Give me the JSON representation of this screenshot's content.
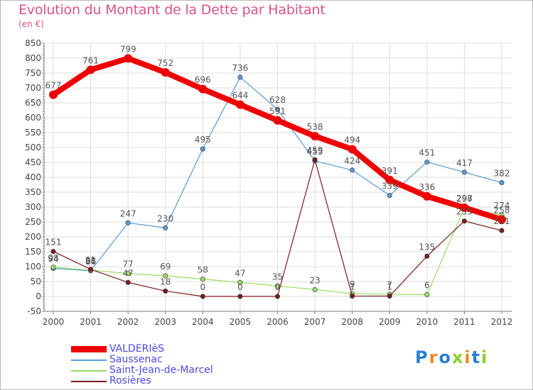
{
  "title": "Evolution du Montant de la Dette par Habitant",
  "subtitle": "(en €)",
  "logo_text": "Proxiti",
  "colors": {
    "title": "#d9528a",
    "grid": "#dcdcdc",
    "axis": "#777777",
    "legend_text": "#4a4ae6"
  },
  "chart_data": {
    "type": "line",
    "title": "Evolution du Montant de la Dette par Habitant",
    "subtitle": "(en €)",
    "xlabel": "",
    "ylabel": "",
    "x": [
      "2000",
      "2001",
      "2002",
      "2003",
      "2004",
      "2005",
      "2006",
      "2007",
      "2008",
      "2009",
      "2010",
      "2011",
      "2012"
    ],
    "ylim": [
      -50,
      850
    ],
    "yticks": [
      -50,
      0,
      50,
      100,
      150,
      200,
      250,
      300,
      350,
      400,
      450,
      500,
      550,
      600,
      650,
      700,
      750,
      800,
      850
    ],
    "grid": true,
    "legend_position": "bottom-left",
    "series": [
      {
        "name": "VALDERIèS",
        "color": "#ee0000",
        "width": 8,
        "values": [
          677,
          761,
          799,
          752,
          696,
          644,
          591,
          538,
          494,
          391,
          336,
          298,
          258
        ],
        "labels": [
          "677",
          "761",
          "799",
          "752",
          "696",
          "644",
          "591",
          "538",
          "494",
          "391",
          "336",
          "298",
          "258"
        ]
      },
      {
        "name": "Saussenac",
        "color": "#5b9bd5",
        "width": 1.2,
        "values": [
          94,
          86,
          247,
          230,
          495,
          736,
          628,
          455,
          424,
          339,
          451,
          417,
          382
        ],
        "labels": [
          "94",
          "86",
          "247",
          "230",
          "495",
          "736",
          "628",
          "455",
          "424",
          "339",
          "451",
          "417",
          "382"
        ]
      },
      {
        "name": "Saint-Jean-de-Marcel",
        "color": "#99dd66",
        "width": 1.2,
        "values": [
          98,
          88,
          77,
          69,
          58,
          47,
          35,
          23,
          9,
          7,
          6,
          297,
          274
        ],
        "labels": [
          "98",
          "88",
          "77",
          "69",
          "58",
          "47",
          "35",
          "23",
          "9",
          "7",
          "6",
          "297",
          "274"
        ]
      },
      {
        "name": "Rosières",
        "color": "#7a1c1c",
        "width": 1.2,
        "values": [
          151,
          91,
          47,
          18,
          0,
          0,
          0,
          459,
          1,
          1,
          135,
          253,
          221
        ],
        "labels": [
          "151",
          "91",
          "47",
          "18",
          "0",
          "0",
          "0",
          "459",
          "1",
          "1",
          "135",
          "253",
          "221"
        ]
      }
    ]
  },
  "legend": [
    {
      "label": "VALDERIèS"
    },
    {
      "label": "Saussenac"
    },
    {
      "label": "Saint-Jean-de-Marcel"
    },
    {
      "label": "Rosières"
    }
  ]
}
